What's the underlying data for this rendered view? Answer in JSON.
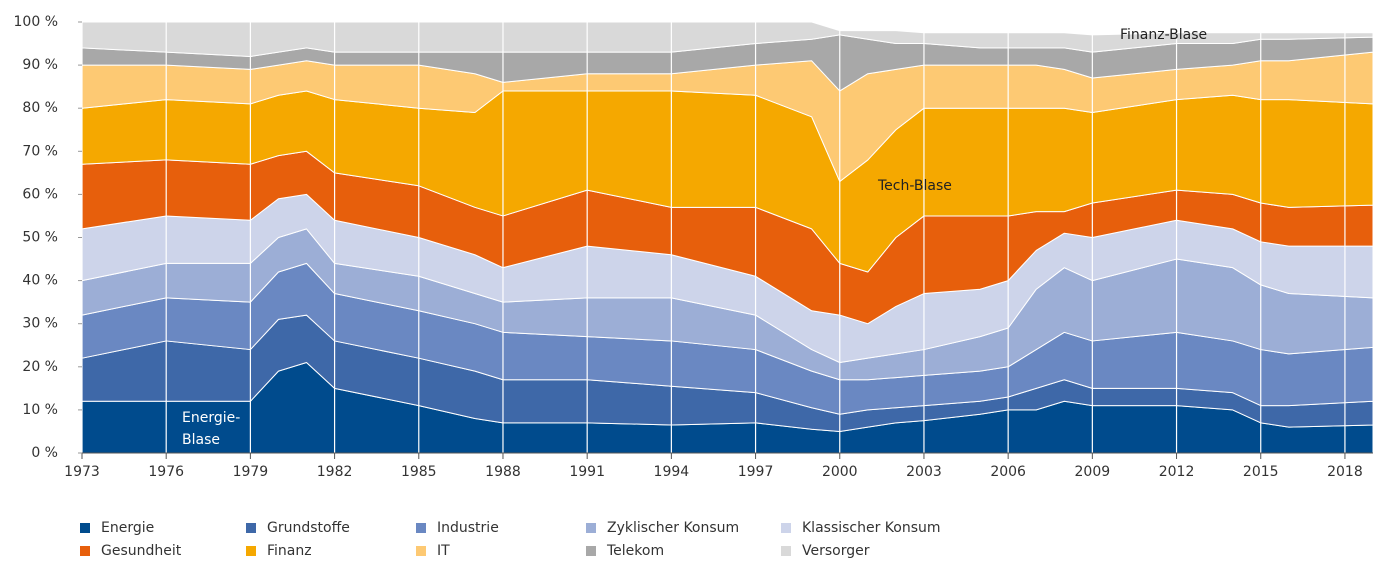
{
  "chart_data": {
    "type": "stacked-area",
    "x": [
      1973,
      1976,
      1979,
      1980,
      1981,
      1982,
      1985,
      1987,
      1988,
      1991,
      1994,
      1997,
      1999,
      2000,
      2001,
      2002,
      2003,
      2005,
      2006,
      2007,
      2008,
      2009,
      2012,
      2014,
      2015,
      2016,
      2019
    ],
    "series": [
      {
        "name": "Energie",
        "color": "#004b8d",
        "values": [
          12,
          12,
          12,
          19,
          21,
          15,
          11,
          8,
          7,
          7,
          6.5,
          7,
          5.5,
          5,
          6,
          7,
          7.5,
          9,
          10,
          10,
          12,
          11,
          11,
          10,
          7,
          6,
          6.5
        ]
      },
      {
        "name": "Grundstoffe",
        "color": "#3e68a8",
        "values": [
          10,
          14,
          12,
          12,
          11,
          11,
          11,
          11,
          10,
          10,
          9,
          7,
          5,
          4,
          4,
          3.5,
          3.5,
          3,
          3,
          5,
          5,
          4,
          4,
          4,
          4,
          5,
          5.5
        ]
      },
      {
        "name": "Industrie",
        "color": "#6a88c2",
        "values": [
          10,
          10,
          11,
          11,
          12,
          11,
          11,
          11,
          11,
          10,
          10.5,
          10,
          8.5,
          8,
          7,
          7,
          7,
          7,
          7,
          9,
          11,
          11,
          13,
          12,
          13,
          12,
          12.5
        ]
      },
      {
        "name": "Zyklischer Konsum",
        "color": "#9caed6",
        "values": [
          8,
          8,
          9,
          8,
          8,
          7,
          8,
          7,
          7,
          9,
          10,
          8,
          5,
          4,
          5,
          5.5,
          6,
          8,
          9,
          14,
          15,
          14,
          17,
          17,
          15,
          14,
          11.5
        ]
      },
      {
        "name": "Klassischer Konsum",
        "color": "#cdd4ea",
        "values": [
          12,
          11,
          10,
          9,
          8,
          10,
          9,
          9,
          8,
          12,
          10,
          9,
          9,
          11,
          8,
          11,
          13,
          11,
          11,
          9,
          8,
          10,
          9,
          9,
          10,
          11,
          12
        ]
      },
      {
        "name": "Gesundheit",
        "color": "#e75f0c",
        "values": [
          15,
          13,
          13,
          10,
          10,
          11,
          12,
          11,
          12,
          13,
          11,
          16,
          19,
          12,
          12,
          16,
          18,
          17,
          15,
          9,
          5,
          8,
          7,
          8,
          9,
          9,
          9.5
        ]
      },
      {
        "name": "Finanz",
        "color": "#f5a800",
        "values": [
          13,
          14,
          14,
          14,
          14,
          17,
          18,
          22,
          29,
          23,
          27,
          26,
          26,
          19,
          26,
          25,
          25,
          25,
          25,
          24,
          24,
          21,
          21,
          23,
          24,
          25,
          23.5
        ]
      },
      {
        "name": "IT",
        "color": "#fdc973",
        "values": [
          10,
          8,
          8,
          7,
          7,
          8,
          10,
          9,
          2,
          4,
          4,
          7,
          13,
          21,
          20,
          14,
          10,
          10,
          10,
          10,
          9,
          8,
          7,
          7,
          9,
          9,
          12
        ]
      },
      {
        "name": "Telekom",
        "color": "#a8a8a8",
        "values": [
          4,
          3,
          3,
          3,
          3,
          3,
          3,
          5,
          7,
          5,
          5,
          5,
          5,
          13,
          8,
          6,
          5,
          4,
          4,
          4,
          5,
          6,
          6,
          5,
          5,
          5,
          3.5
        ]
      },
      {
        "name": "Versorger",
        "color": "#d9d9d9",
        "values": [
          6,
          7,
          8,
          7,
          6,
          7,
          7,
          7,
          7,
          7,
          7,
          5,
          4,
          1,
          2,
          3,
          2.5,
          3.5,
          3.5,
          3.5,
          3.5,
          4,
          2.5,
          2.5,
          1.5,
          1.5,
          1
        ]
      }
    ],
    "xlim": [
      1973,
      2019
    ],
    "xticks": [
      1973,
      1976,
      1979,
      1982,
      1985,
      1988,
      1991,
      1994,
      1997,
      2000,
      2003,
      2006,
      2009,
      2012,
      2015,
      2018
    ],
    "ylim": [
      0,
      100
    ],
    "yticks": [
      {
        "value": 0,
        "label": "0 %"
      },
      {
        "value": 10,
        "label": "10 %"
      },
      {
        "value": 20,
        "label": "20 %"
      },
      {
        "value": 30,
        "label": "30 %"
      },
      {
        "value": 40,
        "label": "40 %"
      },
      {
        "value": 50,
        "label": "50 %"
      },
      {
        "value": 60,
        "label": "60 %"
      },
      {
        "value": 70,
        "label": "70 %"
      },
      {
        "value": 80,
        "label": "80 %"
      },
      {
        "value": 90,
        "label": "90 %"
      },
      {
        "value": 100,
        "label": "100 %"
      }
    ],
    "annotations": [
      [
        "Energie-",
        "Blase"
      ],
      [
        "Tech-Blase"
      ],
      [
        "Finanz-Blase"
      ]
    ]
  }
}
